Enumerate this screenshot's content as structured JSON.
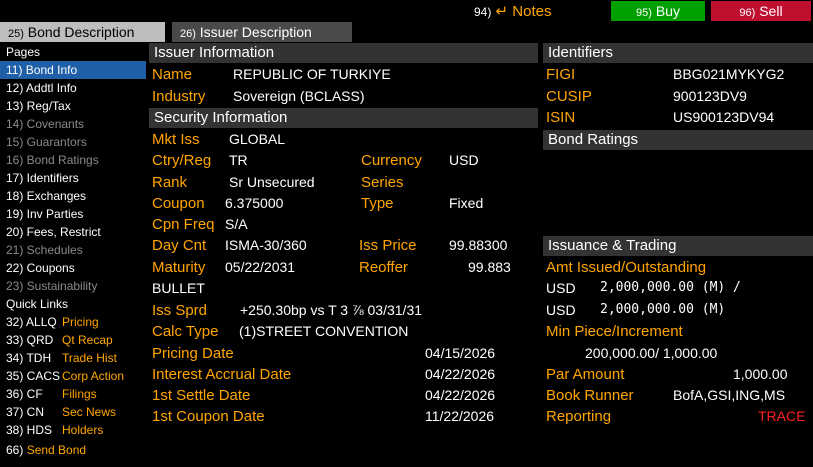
{
  "tabs": [
    {
      "num": "25)",
      "label": "Bond Description"
    },
    {
      "num": "26)",
      "label": "Issuer Description"
    }
  ],
  "toolbar": {
    "notes_num": "94)",
    "notes_label": "Notes",
    "buy_num": "95)",
    "buy_label": "Buy",
    "sell_num": "96)",
    "sell_label": "Sell"
  },
  "sidebar": {
    "pages_heading": "Pages",
    "pages": [
      {
        "label": "11) Bond Info",
        "state": "active"
      },
      {
        "label": "12) Addtl Info",
        "state": "normal"
      },
      {
        "label": "13) Reg/Tax",
        "state": "normal"
      },
      {
        "label": "14) Covenants",
        "state": "dim"
      },
      {
        "label": "15) Guarantors",
        "state": "dim"
      },
      {
        "label": "16) Bond Ratings",
        "state": "dim"
      },
      {
        "label": "17) Identifiers",
        "state": "normal"
      },
      {
        "label": "18) Exchanges",
        "state": "normal"
      },
      {
        "label": "19) Inv Parties",
        "state": "normal"
      },
      {
        "label": "20) Fees, Restrict",
        "state": "normal"
      },
      {
        "label": "21) Schedules",
        "state": "dim"
      },
      {
        "label": "22) Coupons",
        "state": "normal"
      },
      {
        "label": "23) Sustainability",
        "state": "dim"
      }
    ],
    "quick_heading": "Quick Links",
    "quick_links": [
      {
        "code": "32) ALLQ",
        "name": "Pricing"
      },
      {
        "code": "33) QRD",
        "name": "Qt Recap"
      },
      {
        "code": "34) TDH",
        "name": "Trade Hist"
      },
      {
        "code": "35) CACS",
        "name": "Corp Action"
      },
      {
        "code": "36) CF",
        "name": "Filings"
      },
      {
        "code": "37) CN",
        "name": "Sec News"
      },
      {
        "code": "38) HDS",
        "name": "Holders"
      }
    ],
    "send_num": "66)",
    "send_label": "Send Bond"
  },
  "issuer": {
    "title": "Issuer Information",
    "name_label": "Name",
    "name_value": "REPUBLIC OF TURKIYE",
    "industry_label": "Industry",
    "industry_value": "Sovereign (BCLASS)"
  },
  "security": {
    "title": "Security Information",
    "mkt_iss_label": "Mkt Iss",
    "mkt_iss_value": "GLOBAL",
    "ctry_label": "Ctry/Reg",
    "ctry_value": "TR",
    "currency_label": "Currency",
    "currency_value": "USD",
    "rank_label": "Rank",
    "rank_value": "Sr Unsecured",
    "series_label": "Series",
    "coupon_label": "Coupon",
    "coupon_value": "6.375000",
    "type_label": "Type",
    "type_value": "Fixed",
    "cpn_freq_label": "Cpn Freq",
    "cpn_freq_value": "S/A",
    "day_cnt_label": "Day Cnt",
    "day_cnt_value": "ISMA-30/360",
    "iss_price_label": "Iss Price",
    "iss_price_value": "99.88300",
    "maturity_label": "Maturity",
    "maturity_value": "05/22/2031",
    "reoffer_label": "Reoffer",
    "reoffer_value": "99.883",
    "bullet_value": "BULLET",
    "iss_sprd_label": "Iss Sprd",
    "iss_sprd_value": "+250.30bp vs T 3 ⅞ 03/31/31",
    "calc_type_label": "Calc Type",
    "calc_type_value": "(1)STREET CONVENTION",
    "pricing_date_label": "Pricing Date",
    "pricing_date_value": "04/15/2026",
    "accrual_label": "Interest Accrual Date",
    "accrual_value": "04/22/2026",
    "settle_label": "1st Settle Date",
    "settle_value": "04/22/2026",
    "first_coupon_label": "1st Coupon Date",
    "first_coupon_value": "11/22/2026"
  },
  "identifiers": {
    "title": "Identifiers",
    "figi_label": "FIGI",
    "figi_value": "BBG021MYKYG2",
    "cusip_label": "CUSIP",
    "cusip_value": "900123DV9",
    "isin_label": "ISIN",
    "isin_value": "US900123DV94"
  },
  "ratings": {
    "title": "Bond Ratings"
  },
  "issuance": {
    "title": "Issuance & Trading",
    "amt_label": "Amt Issued/Outstanding",
    "issued_ccy": "USD",
    "issued_value": "2,000,000.00 (M)  /",
    "outstanding_ccy": "USD",
    "outstanding_value": "2,000,000.00 (M)",
    "min_piece_label": "Min Piece/Increment",
    "min_piece_value": "200,000.00/ 1,000.00",
    "par_label": "Par Amount",
    "par_value": "1,000.00",
    "runner_label": "Book Runner",
    "runner_value": "BofA,GSI,ING,MS",
    "reporting_label": "Reporting",
    "reporting_value": "TRACE"
  }
}
